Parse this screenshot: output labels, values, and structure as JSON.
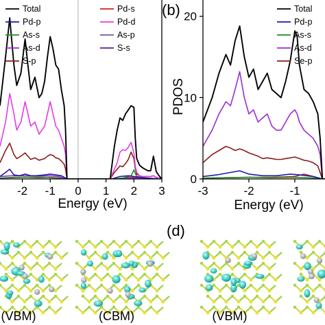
{
  "panel_labels": {
    "b": "(b)",
    "d": "(d)"
  },
  "captions": [
    "(VBM)",
    "(CBM)",
    "(VBM)"
  ],
  "colors": {
    "Total": "#000000",
    "Pd-p": "#1a1aa8",
    "As-s": "#1f8a1f",
    "As-d": "#9a2bd6",
    "S-p": "#8b1a1a",
    "Pd-s": "#d41c1c",
    "Pd-d": "#e639e6",
    "As-p": "#6d5a96",
    "S-s": "#6a1a8a",
    "Se-p": "#8b1a1a"
  },
  "chart_data": [
    {
      "type": "line",
      "xlabel": "Energy (eV)",
      "ylabel": "",
      "xlim": [
        -2.8,
        3
      ],
      "ylim": [
        0,
        22
      ],
      "xticks": [
        -2,
        -1,
        0,
        1,
        2,
        3
      ],
      "xticklabels": [
        "-2",
        "-1",
        "0",
        "1",
        "2",
        "3"
      ],
      "fermi_level": 0,
      "legend_columns": [
        [
          "Total",
          "Pd-p",
          "As-s",
          "As-d",
          "S-p"
        ],
        [
          "Pd-s",
          "Pd-d",
          "As-p",
          "S-s"
        ]
      ],
      "series": [
        {
          "name": "Total",
          "x": [
            -2.8,
            -2.6,
            -2.45,
            -2.3,
            -2.2,
            -2.05,
            -1.9,
            -1.8,
            -1.7,
            -1.55,
            -1.4,
            -1.3,
            -1.2,
            -1.1,
            -1.0,
            -0.9,
            -0.8,
            -0.7,
            -0.6,
            -0.5,
            -0.45,
            -0.4,
            1.15,
            1.3,
            1.4,
            1.5,
            1.6,
            1.7,
            1.8,
            1.9,
            2.0,
            2.05,
            2.1,
            2.2,
            2.3,
            2.4,
            2.5,
            2.6,
            2.7,
            2.8,
            2.9,
            3.0
          ],
          "y": [
            9,
            15,
            19.8,
            14,
            11.5,
            13,
            17.2,
            14,
            11,
            12.5,
            10,
            10.5,
            12,
            15,
            17.5,
            16,
            14,
            13.5,
            11,
            9,
            6,
            0,
            0,
            4,
            6,
            7.5,
            7.2,
            8,
            8.5,
            9,
            8.8,
            5,
            2.5,
            1.7,
            1.4,
            1.2,
            1.0,
            1.0,
            2.8,
            0.9,
            0.4,
            0
          ]
        },
        {
          "name": "Pd-d",
          "x": [
            -2.8,
            -2.6,
            -2.45,
            -2.3,
            -2.2,
            -2.05,
            -1.9,
            -1.8,
            -1.7,
            -1.55,
            -1.4,
            -1.3,
            -1.2,
            -1.1,
            -1.0,
            -0.9,
            -0.8,
            -0.7,
            -0.6,
            -0.5,
            -0.45,
            -0.4,
            1.15,
            1.3,
            1.4,
            1.5,
            1.6,
            1.7,
            1.8,
            1.9,
            2.0,
            2.05,
            2.1,
            2.2,
            2.3,
            2.4,
            2.5,
            2.6,
            2.7,
            2.8,
            2.9,
            3.0
          ],
          "y": [
            4,
            7,
            10.5,
            8,
            6,
            7,
            9.5,
            8,
            6.5,
            7,
            5.5,
            6,
            6.5,
            8,
            9.5,
            8,
            6.5,
            6,
            5,
            4,
            3,
            0,
            0,
            1.2,
            2,
            3.3,
            3.6,
            3.5,
            3.9,
            4.5,
            3.2,
            1.6,
            0.8,
            0.4,
            0.3,
            0.3,
            0.3,
            0.3,
            0.4,
            0.2,
            0.1,
            0
          ]
        },
        {
          "name": "S-p",
          "x": [
            -2.8,
            -2.6,
            -2.45,
            -2.3,
            -2.2,
            -2.05,
            -1.9,
            -1.8,
            -1.7,
            -1.55,
            -1.4,
            -1.3,
            -1.2,
            -1.1,
            -1.0,
            -0.9,
            -0.8,
            -0.7,
            -0.6,
            -0.5,
            -0.45,
            -0.4,
            1.15,
            1.3,
            1.4,
            1.5,
            1.6,
            1.7,
            1.8,
            1.9,
            2.0,
            2.05,
            2.1,
            2.2,
            2.3,
            2.4,
            2.5,
            2.6,
            2.7,
            2.8,
            2.9,
            3.0
          ],
          "y": [
            2,
            3.5,
            4.4,
            3,
            2.5,
            2.8,
            3.2,
            2.8,
            2.4,
            2.6,
            2.3,
            2.4,
            2.5,
            2.8,
            3.0,
            2.9,
            2.6,
            2.5,
            2.2,
            1.8,
            1.2,
            0,
            0,
            0.8,
            1.2,
            1.6,
            1.5,
            1.9,
            2.4,
            3.3,
            2.5,
            1.3,
            0.6,
            0.4,
            0.3,
            0.3,
            0.3,
            0.3,
            0.4,
            0.2,
            0.1,
            0
          ]
        },
        {
          "name": "Pd-p",
          "x": [
            -2.8,
            -2.6,
            -2.45,
            -2.3,
            -2.1,
            -1.9,
            -1.7,
            -1.5,
            -1.2,
            -1.0,
            -0.8,
            -0.6,
            -0.4,
            1.2,
            1.5,
            1.8,
            2.0,
            2.2,
            2.5,
            3.0
          ],
          "y": [
            0.3,
            0.8,
            1.2,
            0.5,
            0.4,
            0.6,
            0.4,
            0.4,
            0.5,
            0.6,
            0.5,
            0.4,
            0,
            0,
            0.3,
            0.4,
            0.3,
            0.2,
            0.1,
            0
          ]
        },
        {
          "name": "As-s",
          "x": [
            -2.8,
            -2.3,
            -1.8,
            -1.2,
            -0.7,
            -0.4,
            1.2,
            1.6,
            1.9,
            2.0,
            2.1,
            2.4,
            3.0
          ],
          "y": [
            0.1,
            0.2,
            0.2,
            0.2,
            0.1,
            0,
            0,
            0.1,
            0.4,
            1.1,
            0.3,
            0.1,
            0
          ]
        },
        {
          "name": "As-d",
          "x": [
            -2.8,
            -2.4,
            -1.9,
            -1.4,
            -1.0,
            -0.7,
            -0.4,
            1.2,
            1.7,
            2.1,
            2.5,
            3.0
          ],
          "y": [
            0.3,
            0.4,
            0.4,
            0.35,
            0.4,
            0.3,
            0,
            0,
            0.1,
            0.1,
            0.05,
            0
          ]
        },
        {
          "name": "Pd-s",
          "x": [
            -2.8,
            -2.4,
            -1.9,
            -1.4,
            -1.0,
            -0.6,
            -0.4,
            1.2,
            1.6,
            2.0,
            2.5,
            3.0
          ],
          "y": [
            0.1,
            0.15,
            0.2,
            0.15,
            0.2,
            0.1,
            0,
            0,
            0.1,
            0.2,
            0.05,
            0
          ]
        }
      ]
    },
    {
      "type": "line",
      "xlabel": "Energy (eV)",
      "ylabel": "PDOS",
      "xlim": [
        -3,
        1.8
      ],
      "ylim": [
        0,
        22
      ],
      "xticks": [
        -3,
        -2,
        -1,
        0,
        1
      ],
      "xticklabels": [
        "-3",
        "-2",
        "-1",
        "0",
        "1"
      ],
      "yticks": [
        0,
        10,
        20
      ],
      "yticklabels": [
        "0",
        "10",
        "20"
      ],
      "fermi_level": 0,
      "legend_columns": [
        [
          "Total",
          "Pd-p",
          "As-s",
          "As-d",
          "Se-p"
        ]
      ],
      "series": [
        {
          "name": "Total",
          "x": [
            -3.0,
            -2.8,
            -2.65,
            -2.5,
            -2.4,
            -2.3,
            -2.2,
            -2.1,
            -2.0,
            -1.9,
            -1.8,
            -1.7,
            -1.6,
            -1.5,
            -1.4,
            -1.3,
            -1.2,
            -1.1,
            -1.0,
            -0.95,
            -0.9,
            -0.8,
            -0.7,
            -0.6,
            -0.5,
            -0.45,
            -0.4,
            1.1,
            1.2,
            1.3,
            1.4,
            1.5,
            1.6,
            1.7,
            1.8
          ],
          "y": [
            7,
            10,
            13,
            15.3,
            14,
            17,
            18.8,
            15,
            12.5,
            13.5,
            11,
            12,
            13,
            11,
            10.5,
            10,
            12,
            14.5,
            18.2,
            17.5,
            14,
            11,
            10.5,
            9.5,
            8,
            5,
            0,
            0,
            1,
            2.5,
            3.5,
            4.8,
            5.5,
            4.5,
            3
          ]
        },
        {
          "name": "As-d",
          "x": [
            -3.0,
            -2.8,
            -2.65,
            -2.5,
            -2.4,
            -2.3,
            -2.2,
            -2.1,
            -2.0,
            -1.9,
            -1.8,
            -1.7,
            -1.6,
            -1.5,
            -1.4,
            -1.3,
            -1.2,
            -1.1,
            -1.0,
            -0.95,
            -0.9,
            -0.8,
            -0.7,
            -0.6,
            -0.5,
            -0.45,
            -0.4,
            1.1,
            1.2,
            1.3,
            1.4,
            1.5,
            1.6,
            1.7,
            1.8
          ],
          "y": [
            4,
            6,
            8,
            9.5,
            9,
            11,
            13.2,
            10,
            8,
            8.5,
            7,
            7.5,
            8,
            6.5,
            6,
            6,
            7,
            8,
            8.5,
            8,
            7,
            6,
            5.5,
            5,
            4,
            3,
            0,
            0,
            0.5,
            1,
            1.5,
            2,
            2.5,
            2,
            1.5
          ]
        },
        {
          "name": "Se-p",
          "x": [
            -3.0,
            -2.8,
            -2.65,
            -2.5,
            -2.4,
            -2.3,
            -2.2,
            -2.1,
            -2.0,
            -1.9,
            -1.8,
            -1.7,
            -1.6,
            -1.5,
            -1.4,
            -1.3,
            -1.2,
            -1.1,
            -1.0,
            -0.9,
            -0.8,
            -0.7,
            -0.6,
            -0.5,
            -0.4,
            1.1,
            1.3,
            1.5,
            1.7,
            1.8
          ],
          "y": [
            2,
            3,
            3.5,
            4,
            3.8,
            3.5,
            3.7,
            3.5,
            3.2,
            3.0,
            2.8,
            2.5,
            2.6,
            2.5,
            2.4,
            2.4,
            2.5,
            2.6,
            2.7,
            2.5,
            2.3,
            2.2,
            2.0,
            1.6,
            0,
            0,
            0.6,
            1.0,
            0.8,
            0.6
          ]
        },
        {
          "name": "Pd-p",
          "x": [
            -3.0,
            -2.7,
            -2.4,
            -2.2,
            -2.0,
            -1.7,
            -1.4,
            -1.1,
            -0.9,
            -0.6,
            -0.4,
            1.1,
            1.4,
            1.8
          ],
          "y": [
            0.3,
            0.5,
            0.8,
            1.0,
            0.6,
            0.4,
            0.4,
            0.6,
            0.5,
            0.3,
            0,
            0,
            0.2,
            0.2
          ]
        },
        {
          "name": "As-s",
          "x": [
            -3.0,
            -2.5,
            -2.0,
            -1.5,
            -1.0,
            -0.5,
            -0.4,
            1.1,
            1.5,
            1.8
          ],
          "y": [
            0.1,
            0.15,
            0.2,
            0.15,
            0.2,
            0.1,
            0,
            0,
            0.1,
            0.1
          ]
        },
        {
          "name": "Pd-s",
          "x": [
            -3.0,
            -2.5,
            -2.0,
            -1.5,
            -1.0,
            -0.8,
            -0.6,
            -0.4,
            1.1,
            1.5,
            1.8
          ],
          "y": [
            0.1,
            0.15,
            0.2,
            0.2,
            0.3,
            0.6,
            0.3,
            0,
            0,
            0.1,
            0.1
          ]
        }
      ]
    }
  ]
}
